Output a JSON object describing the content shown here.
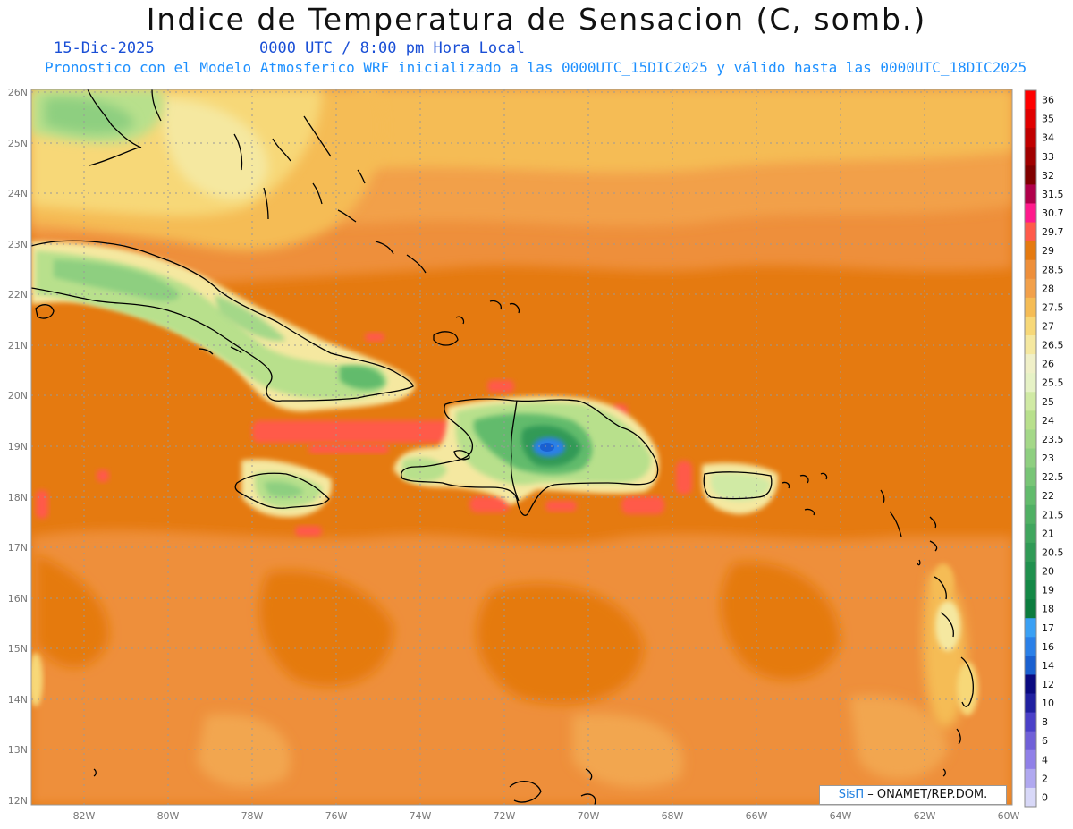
{
  "title": "Indice de Temperatura de Sensacion (C, somb.)",
  "date": "15-Dic-2025",
  "time": "0000 UTC / 8:00 pm Hora Local",
  "forecast": "Pronostico con el Modelo Atmosferico WRF inicializado a las 0000UTC_15DIC2025 y válido hasta las  0000UTC_18DIC2025",
  "lat_labels": [
    "26N",
    "25N",
    "24N",
    "23N",
    "22N",
    "21N",
    "20N",
    "19N",
    "18N",
    "17N",
    "16N",
    "15N",
    "14N",
    "13N",
    "12N"
  ],
  "lon_labels": [
    "82W",
    "80W",
    "78W",
    "76W",
    "74W",
    "72W",
    "70W",
    "68W",
    "66W",
    "64W",
    "62W",
    "60W"
  ],
  "colorbar": {
    "labels": [
      "36",
      "35",
      "34",
      "33",
      "32",
      "31.5",
      "30.7",
      "29.7",
      "29",
      "28.5",
      "28",
      "27.5",
      "27",
      "26.5",
      "26",
      "25.5",
      "25",
      "24",
      "23.5",
      "23",
      "22.5",
      "22",
      "21.5",
      "21",
      "20.5",
      "20",
      "19",
      "18",
      "17",
      "16",
      "14",
      "12",
      "10",
      "8",
      "6",
      "4",
      "2",
      "0"
    ],
    "colors": [
      "#ff0000",
      "#e00000",
      "#c00000",
      "#a00000",
      "#800000",
      "#b0004a",
      "#ff1a8c",
      "#ff5a4a",
      "#e57a10",
      "#ee8f3a",
      "#f2a04a",
      "#f5bc55",
      "#f7d878",
      "#f5e8a0",
      "#f0f0c8",
      "#e6f2c6",
      "#d0eaa4",
      "#b8e08c",
      "#a4d888",
      "#8ecf80",
      "#78c576",
      "#62bb6c",
      "#50b064",
      "#40a65e",
      "#309a56",
      "#20904e",
      "#148846",
      "#0c7c3e",
      "#3aa0f4",
      "#2a80e8",
      "#1a60d0",
      "#0a0a80",
      "#2020a0",
      "#4a40c8",
      "#7060d8",
      "#9080e8",
      "#b0a8f0",
      "#d8d8f8"
    ]
  },
  "credit": {
    "sis": "SisΠ",
    "text": "– ONAMET/REP.DOM."
  },
  "colors": {
    "base": "#e07b12",
    "warm": "#ee8f3a",
    "light": "#f2a650",
    "coast": "#000000",
    "grid": "#999999"
  }
}
